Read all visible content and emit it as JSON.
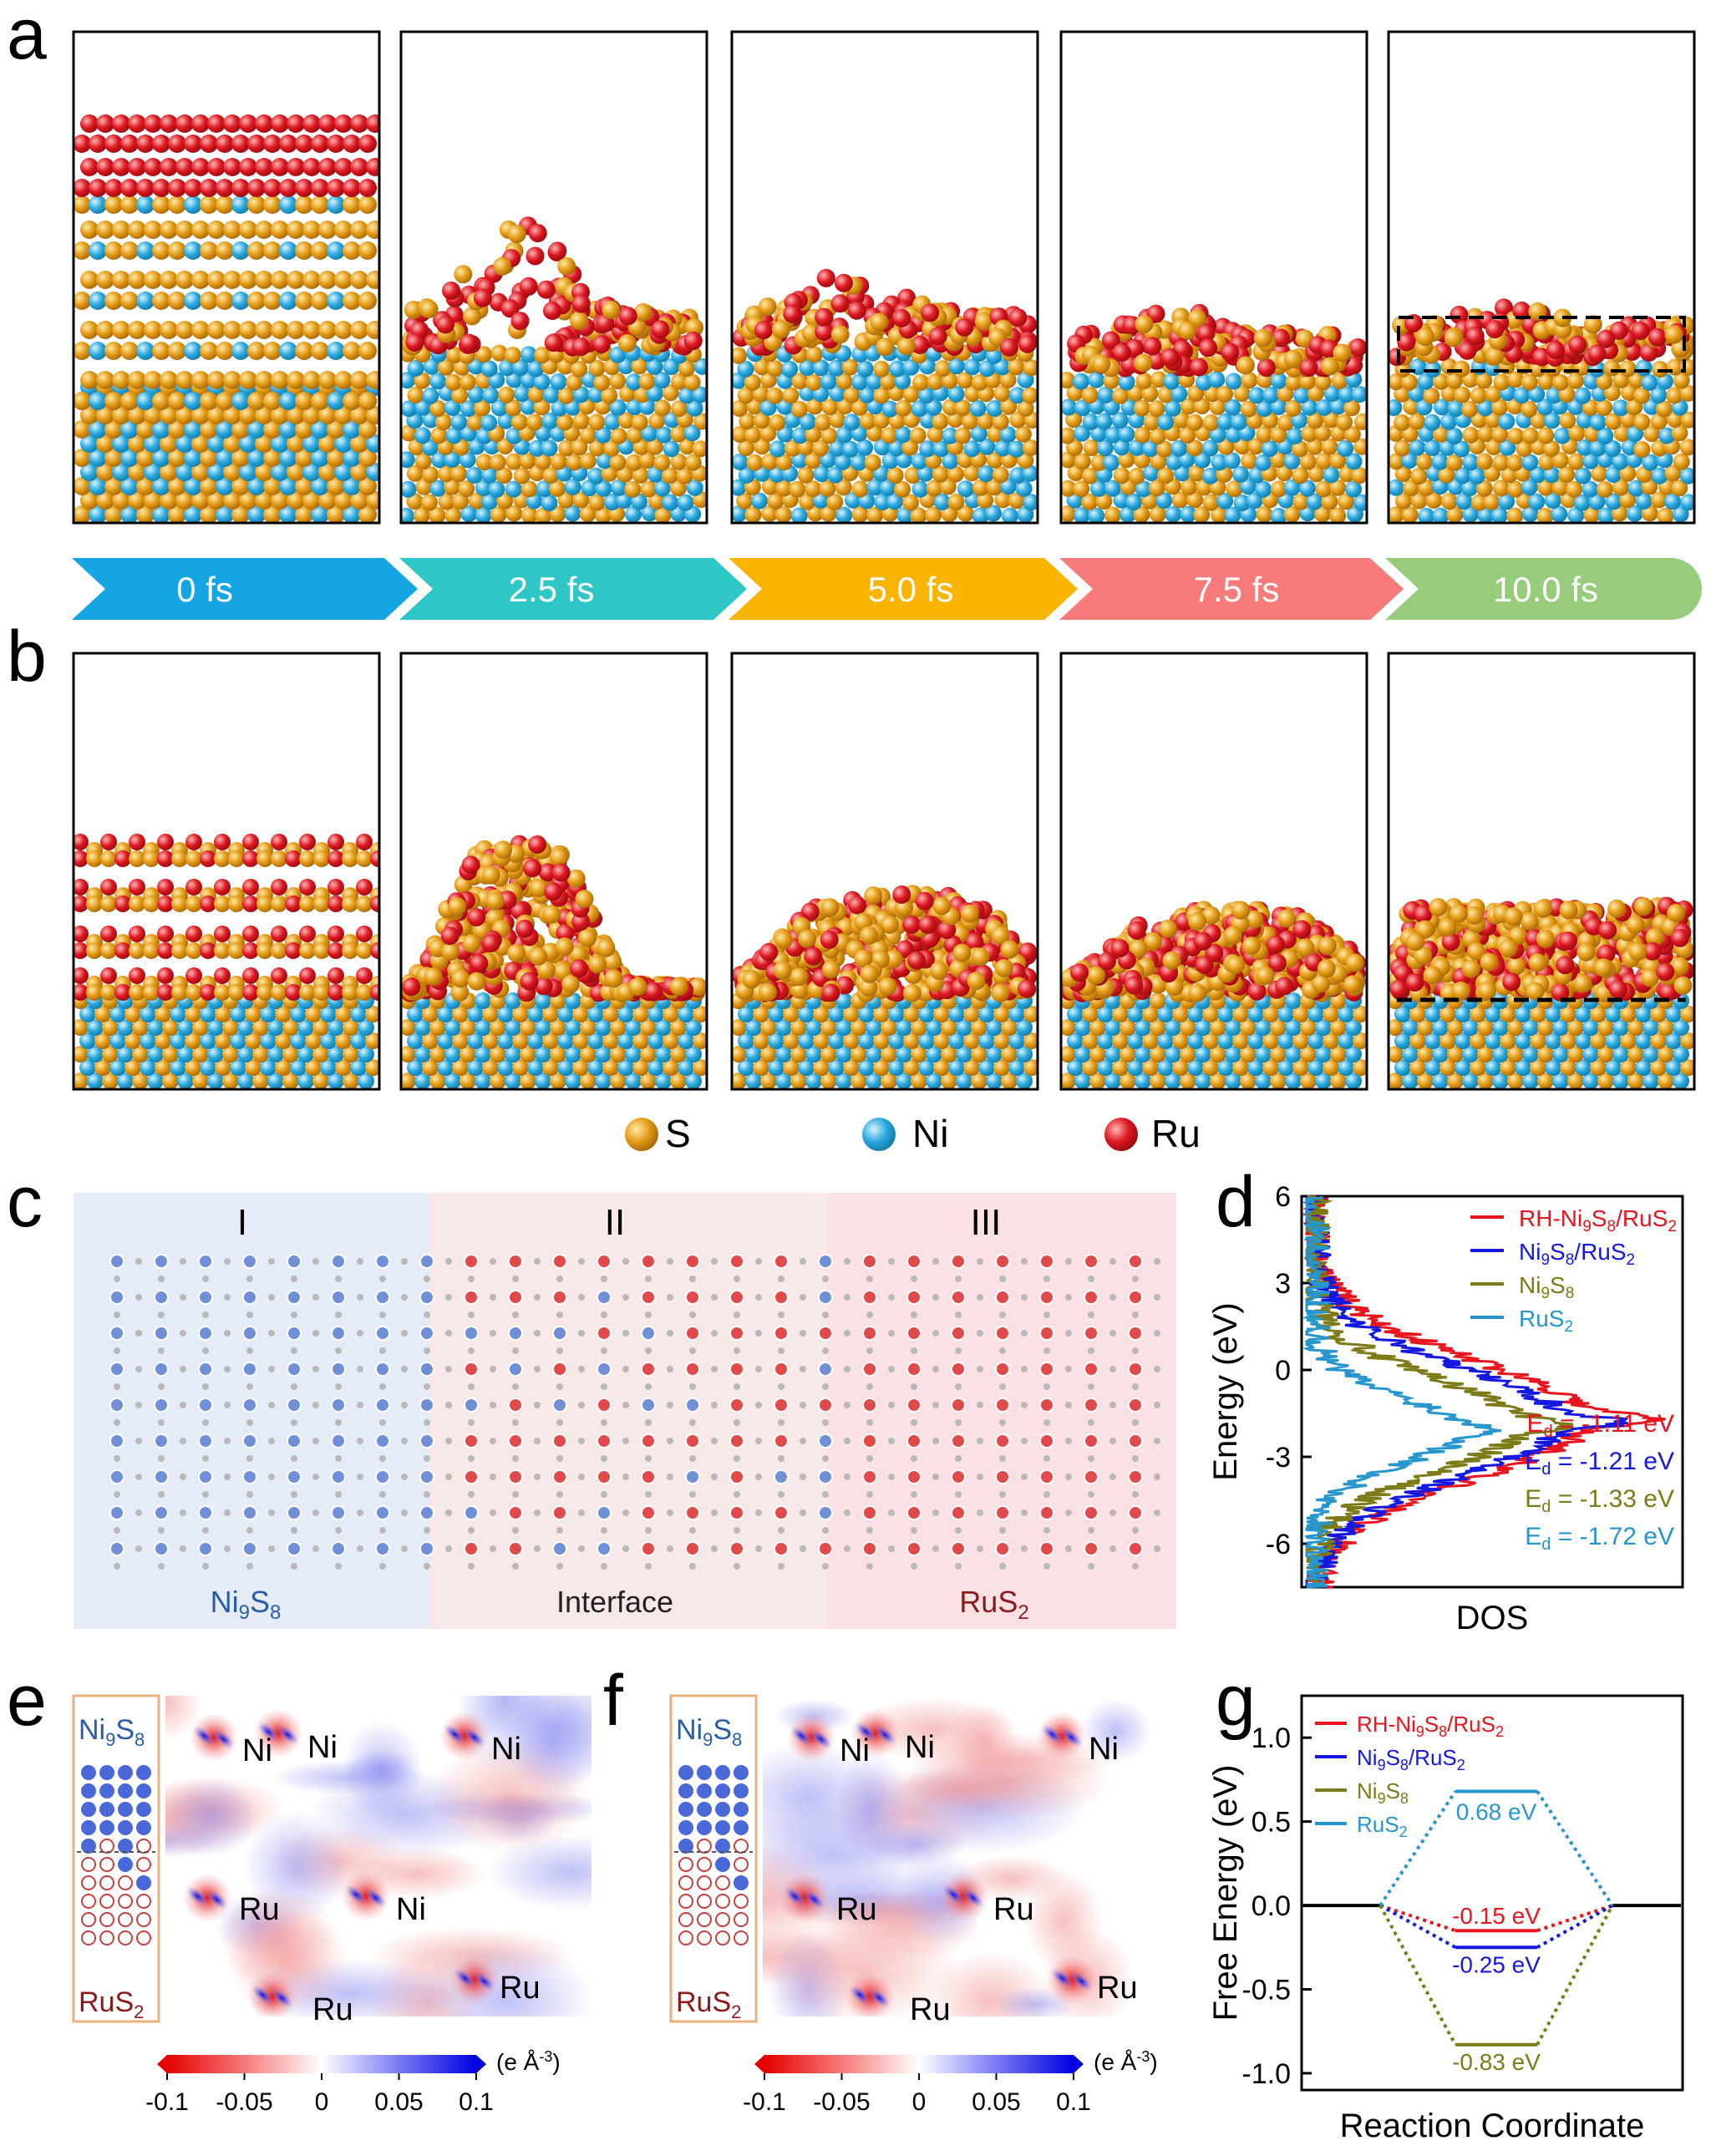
{
  "panel_labels": [
    "a",
    "b",
    "c",
    "d",
    "e",
    "f",
    "g"
  ],
  "timeline": [
    {
      "label": "0 fs",
      "color": "#14a5e2"
    },
    {
      "label": "2.5 fs",
      "color": "#2fc6c6"
    },
    {
      "label": "5.0 fs",
      "color": "#f9b400"
    },
    {
      "label": "7.5 fs",
      "color": "#f67b7a"
    },
    {
      "label": "10.0 fs",
      "color": "#96cc7b"
    }
  ],
  "legend_atoms": [
    {
      "label": "S",
      "color": "#e29a12"
    },
    {
      "label": "Ni",
      "color": "#29a7dc"
    },
    {
      "label": "Ru",
      "color": "#d8171f"
    }
  ],
  "panel_c": {
    "regions": [
      "I",
      "II",
      "III"
    ],
    "captions": [
      "Ni9S8",
      "Interface",
      "RuS2"
    ],
    "region_colors": [
      "#e6ecf7",
      "#f6e9e7",
      "#fbe1e3"
    ]
  },
  "map_labels_e": [
    "Ni",
    "Ni",
    "Ni",
    "Ru",
    "Ni",
    "Ru",
    "Ru"
  ],
  "map_labels_f": [
    "Ni",
    "Ni",
    "Ni",
    "Ru",
    "Ru",
    "Ru",
    "Ru"
  ],
  "inset": {
    "top": "Ni9S8",
    "bottom": "RuS2"
  },
  "colorbar": {
    "ticks": [
      "-0.1",
      "-0.05",
      "0",
      "0.05",
      "0.1"
    ],
    "unit": "(e Å-3)"
  },
  "colors": {
    "rh": "#e8141e",
    "ni9s8_rus2": "#1418e0",
    "ni9s8": "#7d7a18",
    "rus2": "#2696cc"
  },
  "chart_data": [
    {
      "type": "line",
      "panel": "d",
      "ylabel": "Energy (eV)",
      "xlabel": "DOS",
      "ylim": [
        -7.5,
        6
      ],
      "yticks": [
        6,
        3,
        0,
        -3,
        -6
      ],
      "series": [
        {
          "name": "RH-Ni9S8/RuS2",
          "d_band_center_label": "Ed = -1.11 eV"
        },
        {
          "name": "Ni9S8/RuS2",
          "d_band_center_label": "Ed = -1.21 eV"
        },
        {
          "name": "Ni9S8",
          "d_band_center_label": "Ed = -1.33 eV"
        },
        {
          "name": "RuS2",
          "d_band_center_label": "Ed = -1.72 eV"
        }
      ]
    },
    {
      "type": "line",
      "panel": "g",
      "ylabel": "Free Energy (eV)",
      "xlabel": "Reaction Coordinate",
      "ylim": [
        -1.1,
        1.25
      ],
      "yticks": [
        1.0,
        0.5,
        0.0,
        -0.5,
        -1.0
      ],
      "series": [
        {
          "name": "RH-Ni9S8/RuS2",
          "values": [
            0,
            -0.15,
            0
          ],
          "label": "-0.15 eV"
        },
        {
          "name": "Ni9S8/RuS2",
          "values": [
            0,
            -0.25,
            0
          ],
          "label": "-0.25 eV"
        },
        {
          "name": "Ni9S8",
          "values": [
            0,
            -0.83,
            0
          ],
          "label": "-0.83 eV"
        },
        {
          "name": "RuS2",
          "values": [
            0,
            0.68,
            0
          ],
          "label": "0.68 eV"
        }
      ]
    }
  ]
}
